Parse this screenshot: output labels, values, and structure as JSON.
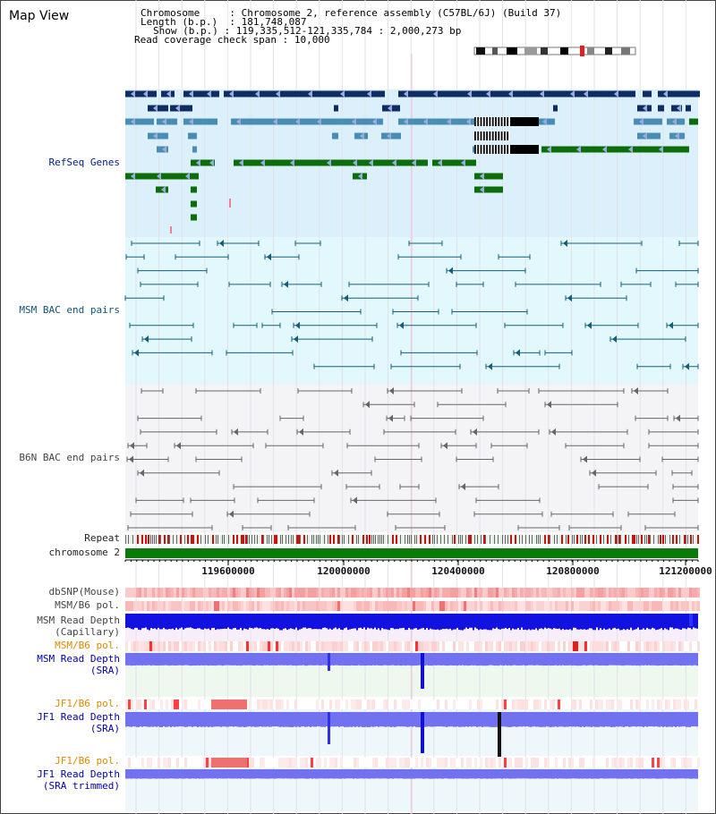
{
  "app": {
    "title": "Map View"
  },
  "header": {
    "chromosome_label": "Chromosome",
    "chromosome_value": "Chromosome 2, reference assembly (C57BL/6J) (Build 37)",
    "length_label": "Length (b.p.)",
    "length_value": "181,748,087",
    "show_label": "Show (b.p.)",
    "show_value": "119,335,512-121,335,784 : 2,000,273 bp",
    "coverage_label": "Read coverage check span",
    "coverage_value": "10,000"
  },
  "tracks": {
    "refseq": "RefSeq Genes",
    "msm_bac": "MSM BAC end pairs",
    "b6n_bac": "B6N BAC end pairs",
    "repeat": "Repeat",
    "chromosome": "chromosome 2",
    "dbsnp": "dbSNP(Mouse)",
    "msm_b6_pol_1": "MSM/B6 pol.",
    "msm_read_depth_cap_1": "MSM Read Depth",
    "msm_read_depth_cap_2": "(Capillary)",
    "msm_b6_pol_2": "MSM/B6 pol.",
    "msm_read_depth_sra_1": "MSM Read Depth",
    "msm_read_depth_sra_2": "(SRA)",
    "jf1_b6_pol_1": "JF1/B6 pol.",
    "jf1_read_depth_sra_1": "JF1 Read Depth",
    "jf1_read_depth_sra_2": "(SRA)",
    "jf1_b6_pol_2": "JF1/B6 pol.",
    "jf1_read_depth_trim_1": "JF1 Read Depth",
    "jf1_read_depth_trim_2": "(SRA trimmed)"
  },
  "axis": {
    "ticks": [
      "119600000",
      "120000000",
      "120400000",
      "120800000",
      "121200000"
    ]
  },
  "colors": {
    "refseq_bg": "#dcf0fb",
    "msm_bac_bg": "#e2f8fc",
    "b6n_bac_bg": "#f4f4f6",
    "gene_dark": "#0e2d62",
    "gene_mid": "#4a8db4",
    "gene_green": "#0b6e0b",
    "msm_bac": "#11607a",
    "b6n_bac": "#666666",
    "capillary_depth": "#1212e0",
    "sra_depth": "#7272f0",
    "snp": "#f4a8a8",
    "chromosome_bar": "#0a7a0a"
  }
}
